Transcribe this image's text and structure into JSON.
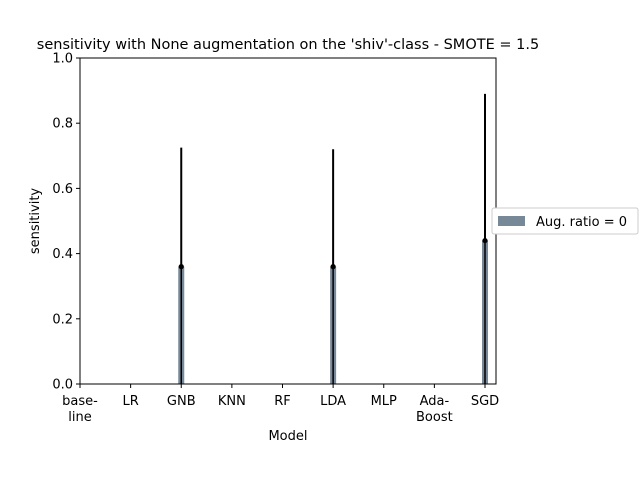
{
  "chart_data": {
    "type": "bar",
    "title": "sensitivity with None augmentation on the 'shiv'-class - SMOTE = 1.5",
    "xlabel": "Model",
    "ylabel": "sensitivity",
    "ylim": [
      0,
      1.0
    ],
    "yticks": [
      "0.0",
      "0.2",
      "0.4",
      "0.6",
      "0.8",
      "1.0"
    ],
    "categories": [
      [
        "base-",
        "line"
      ],
      [
        "LR"
      ],
      [
        "GNB"
      ],
      [
        "KNN"
      ],
      [
        "RF"
      ],
      [
        "LDA"
      ],
      [
        "MLP"
      ],
      [
        "Ada-",
        "Boost"
      ],
      [
        "SGD"
      ]
    ],
    "series": [
      {
        "name": "Aug. ratio = 0",
        "color": "#778899",
        "values": [
          0,
          0,
          0.36,
          0,
          0,
          0.36,
          0,
          0,
          0.44
        ],
        "error_upper": [
          0,
          0,
          0.725,
          0,
          0,
          0.72,
          0,
          0,
          0.89
        ]
      }
    ],
    "legend_position": "right",
    "grid": false
  }
}
